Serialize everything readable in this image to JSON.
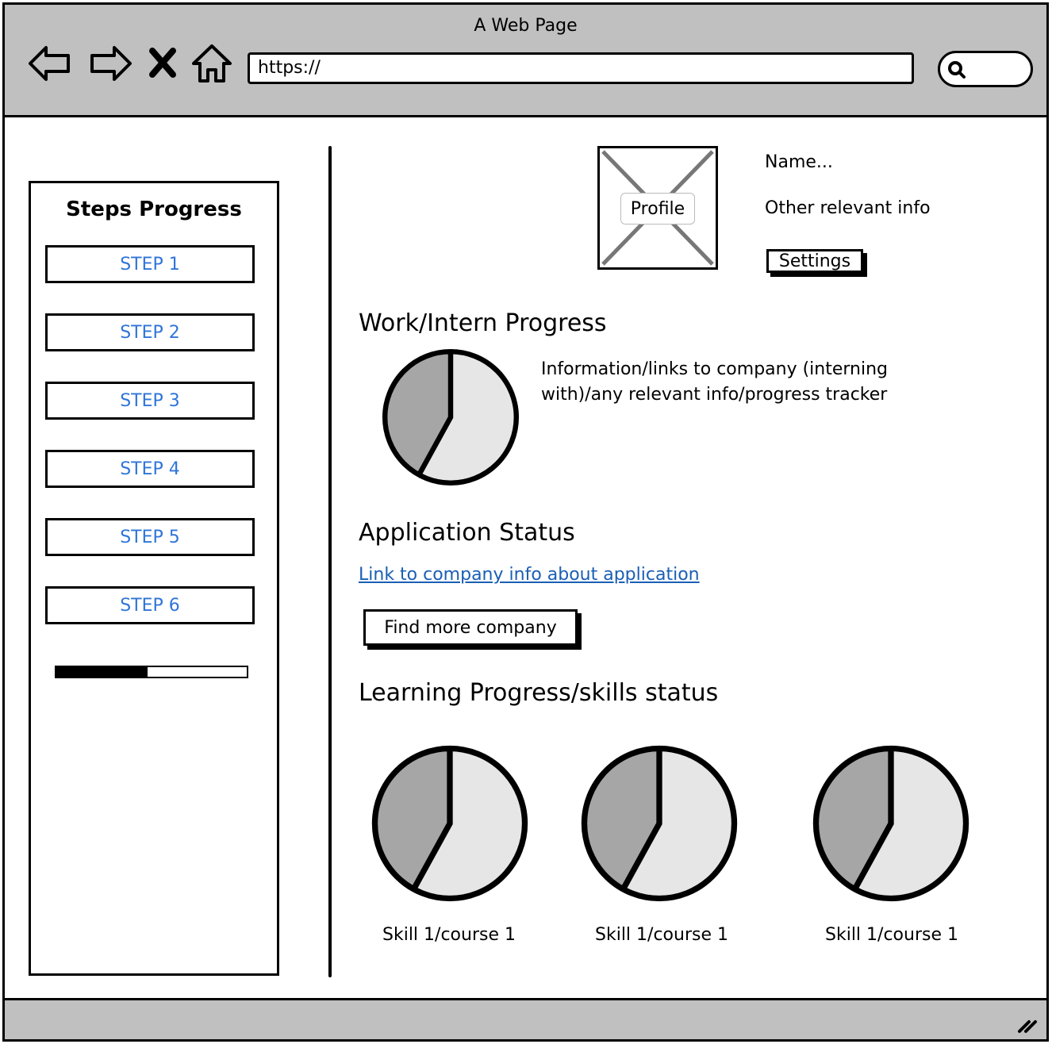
{
  "window": {
    "title": "A Web Page"
  },
  "browser": {
    "url": "https://",
    "nav_icons": [
      "back-arrow-icon",
      "forward-arrow-icon",
      "close-x-icon",
      "home-icon"
    ],
    "search_icon": "search-icon"
  },
  "sidebar": {
    "title": "Steps Progress",
    "steps": [
      {
        "label": "STEP 1"
      },
      {
        "label": "STEP 2"
      },
      {
        "label": "STEP 3"
      },
      {
        "label": "STEP 4"
      },
      {
        "label": "STEP 5"
      },
      {
        "label": "STEP 6"
      }
    ],
    "progress_fraction": 0.48
  },
  "profile": {
    "image_label": "Profile",
    "name": "Name...",
    "info": "Other relevant info",
    "settings_label": "Settings"
  },
  "work": {
    "heading": "Work/Intern Progress",
    "description": "Information/links to company (interning with)/any relevant info/progress tracker",
    "description_line1": "Information/links to company (interning",
    "description_line2": "with)/any relevant info/progress tracker",
    "pie_fraction": 0.42
  },
  "application": {
    "heading": "Application Status",
    "link": "Link to company info about application",
    "button_label": "Find more company"
  },
  "learning": {
    "heading": "Learning Progress/skills status",
    "skills": [
      {
        "label": "Skill 1/course 1",
        "fraction": 0.42
      },
      {
        "label": "Skill 1/course 1",
        "fraction": 0.42
      },
      {
        "label": "Skill 1/course 1",
        "fraction": 0.42
      }
    ]
  },
  "colors": {
    "chrome": "#c0c0c0",
    "step_text": "#2f75d8",
    "link": "#1a5fb4",
    "pie_dark": "#a6a6a6",
    "pie_light": "#e6e6e6"
  }
}
